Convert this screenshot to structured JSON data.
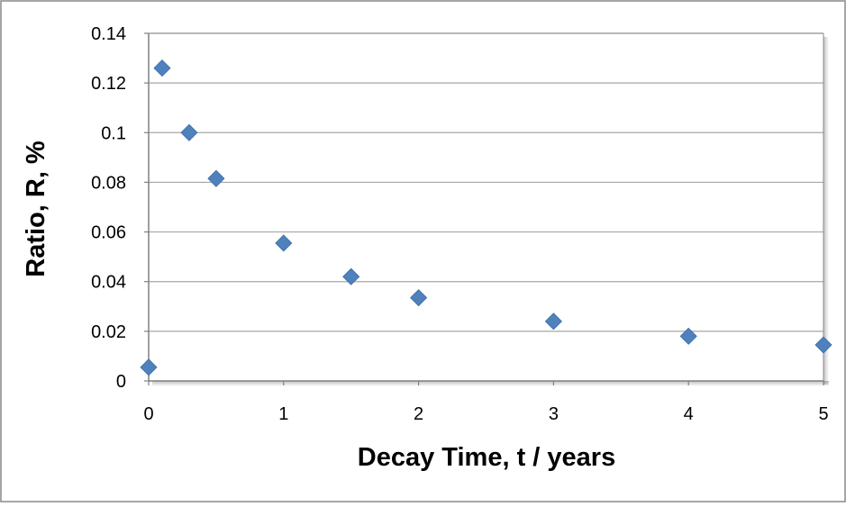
{
  "chart_data": {
    "type": "scatter",
    "title": "",
    "xlabel": "Decay Time, t / years",
    "ylabel": "Ratio, R, %",
    "xlim": [
      0,
      5
    ],
    "ylim": [
      0,
      0.14
    ],
    "x_ticks": [
      0,
      1,
      2,
      3,
      4,
      5
    ],
    "y_ticks": [
      0,
      0.02,
      0.04,
      0.06,
      0.08,
      0.1,
      0.12,
      0.14
    ],
    "x_tick_labels": [
      "0",
      "1",
      "2",
      "3",
      "4",
      "5"
    ],
    "y_tick_labels": [
      "0",
      "0.02",
      "0.04",
      "0.06",
      "0.08",
      "0.1",
      "0.12",
      "0.14"
    ],
    "grid": "horizontal",
    "legend": "none",
    "marker": "diamond",
    "colors": {
      "marker": "#4f81bd",
      "grid": "#a6a6a6",
      "axis": "#808080",
      "frame": "#888888"
    },
    "series": [
      {
        "points": [
          {
            "x": 0,
            "y": 0.0055
          },
          {
            "x": 0.1,
            "y": 0.126
          },
          {
            "x": 0.3,
            "y": 0.1
          },
          {
            "x": 0.5,
            "y": 0.0815
          },
          {
            "x": 1,
            "y": 0.0555
          },
          {
            "x": 1.5,
            "y": 0.042
          },
          {
            "x": 2,
            "y": 0.0335
          },
          {
            "x": 3,
            "y": 0.024
          },
          {
            "x": 4,
            "y": 0.018
          },
          {
            "x": 5,
            "y": 0.0145
          }
        ]
      }
    ]
  }
}
